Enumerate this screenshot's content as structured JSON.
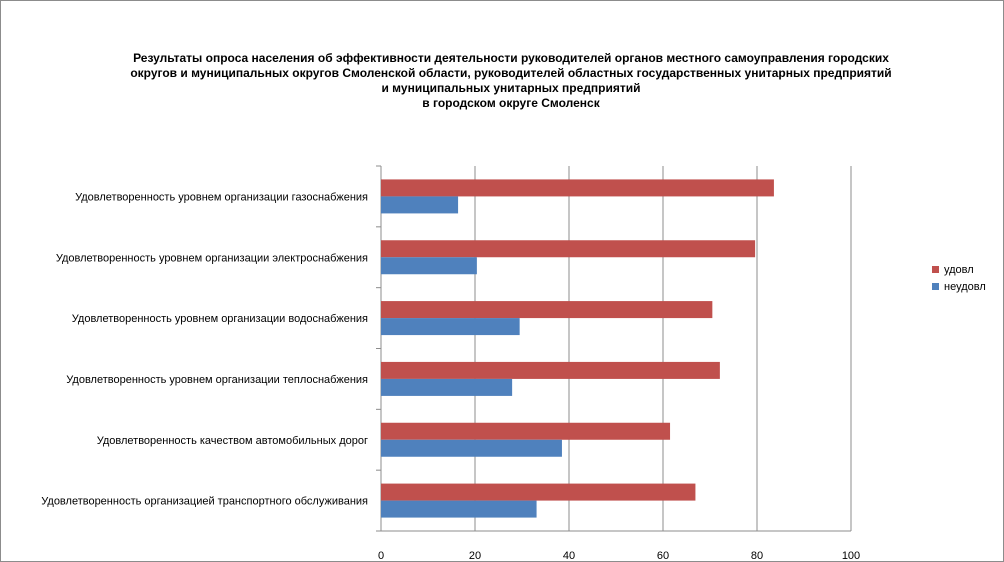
{
  "chart_data": {
    "type": "bar",
    "orientation": "horizontal",
    "title_lines": [
      "Результаты опроса населения об эффективности деятельности руководителей органов местного самоуправления городских",
      "округов и муниципальных округов Смоленской области, руководителей областных государственных унитарных предприятий",
      "и муниципальных унитарных предприятий",
      "в городском округе Смоленск"
    ],
    "categories": [
      "Удовлетворенность уровнем организации газоснабжения",
      "Удовлетворенность уровнем организации электроснабжения",
      "Удовлетворенность уровнем организации водоснабжения",
      "Удовлетворенность уровнем организации теплоснабжения",
      "Удовлетворенность качеством автомобильных дорог",
      "Удовлетворенность организацией транспортного обслуживания"
    ],
    "series": [
      {
        "name": "удовл",
        "color": "#c0504d",
        "values": [
          83.6,
          79.6,
          70.5,
          72.1,
          61.5,
          66.9
        ]
      },
      {
        "name": "неудовл",
        "color": "#4f81bd",
        "values": [
          16.4,
          20.4,
          29.5,
          27.9,
          38.5,
          33.1
        ]
      }
    ],
    "xlim": [
      0,
      100
    ],
    "x_ticks": [
      "0",
      "20",
      "40",
      "60",
      "80",
      "100"
    ],
    "grid": true,
    "legend_position": "right"
  }
}
